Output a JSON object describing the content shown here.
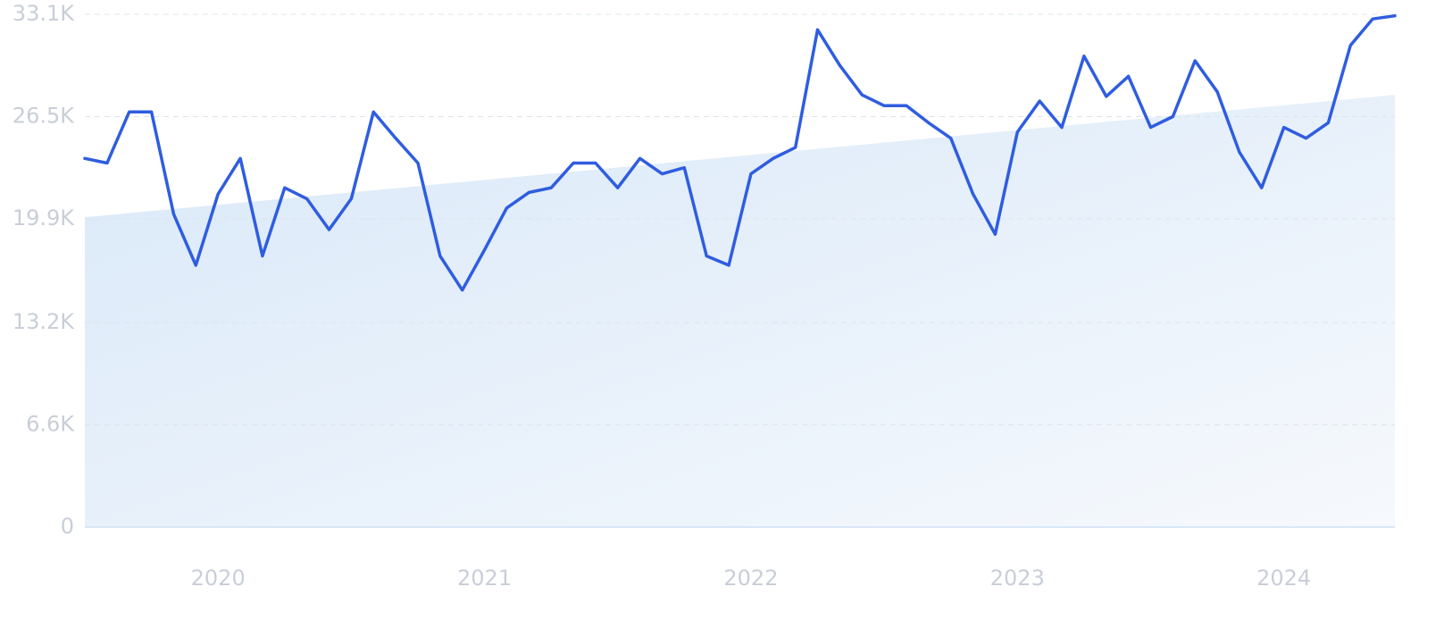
{
  "chart_data": {
    "type": "line",
    "categories": [
      null,
      null,
      null,
      null,
      null,
      null,
      "2020",
      null,
      null,
      null,
      null,
      null,
      null,
      null,
      null,
      null,
      null,
      null,
      "2021",
      null,
      null,
      null,
      null,
      null,
      null,
      null,
      null,
      null,
      null,
      null,
      "2022",
      null,
      null,
      null,
      null,
      null,
      null,
      null,
      null,
      null,
      null,
      null,
      "2023",
      null,
      null,
      null,
      null,
      null,
      null,
      null,
      null,
      null,
      null,
      null,
      "2024",
      null,
      null,
      null,
      null,
      null
    ],
    "values": [
      23800,
      23500,
      26800,
      26800,
      20200,
      16900,
      21500,
      23800,
      17500,
      21900,
      21200,
      19200,
      21200,
      26800,
      25100,
      23500,
      17500,
      15300,
      17900,
      20600,
      21600,
      21900,
      23500,
      23500,
      21900,
      23800,
      22800,
      23200,
      17500,
      16900,
      22800,
      23800,
      24500,
      32100,
      29800,
      27900,
      27200,
      27200,
      26100,
      25100,
      21500,
      18900,
      25500,
      27500,
      25800,
      30400,
      27800,
      29100,
      25800,
      26500,
      30100,
      28100,
      24200,
      21900,
      25800,
      25100,
      26100,
      31100,
      32800,
      33000
    ],
    "color": "#2f5de0",
    "trend": [
      20000,
      27900
    ],
    "ylim": [
      0,
      33100
    ],
    "yticks": [
      0,
      {
        "value": 6600,
        "label": "6.6K"
      },
      {
        "value": 13200,
        "label": "13.2K"
      },
      {
        "value": 19900,
        "label": "19.9K"
      },
      {
        "value": 26500,
        "label": "26.5K"
      },
      {
        "value": 33100,
        "label": "33.1K"
      }
    ],
    "grid": true
  }
}
